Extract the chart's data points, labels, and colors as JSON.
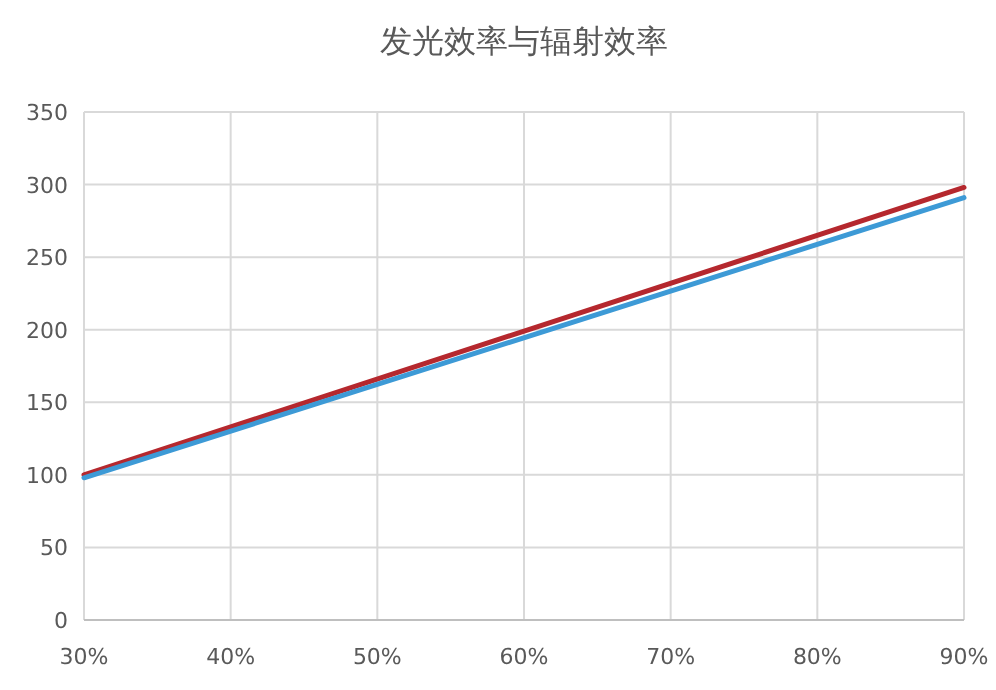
{
  "chart_data": {
    "type": "line",
    "title": "发光效率与辐射效率",
    "x": [
      30,
      90
    ],
    "series": [
      {
        "color": "#b5282e",
        "values": [
          100,
          298
        ]
      },
      {
        "color": "#3d9ad6",
        "values": [
          98,
          291
        ]
      }
    ],
    "xlim": [
      30,
      90
    ],
    "ylim": [
      0,
      350
    ],
    "xticks": [
      {
        "value": 30,
        "label": "30%"
      },
      {
        "value": 40,
        "label": "40%"
      },
      {
        "value": 50,
        "label": "50%"
      },
      {
        "value": 60,
        "label": "60%"
      },
      {
        "value": 70,
        "label": "70%"
      },
      {
        "value": 80,
        "label": "80%"
      },
      {
        "value": 90,
        "label": "90%"
      }
    ],
    "yticks": [
      0,
      50,
      100,
      150,
      200,
      250,
      300,
      350
    ],
    "grid": true
  }
}
